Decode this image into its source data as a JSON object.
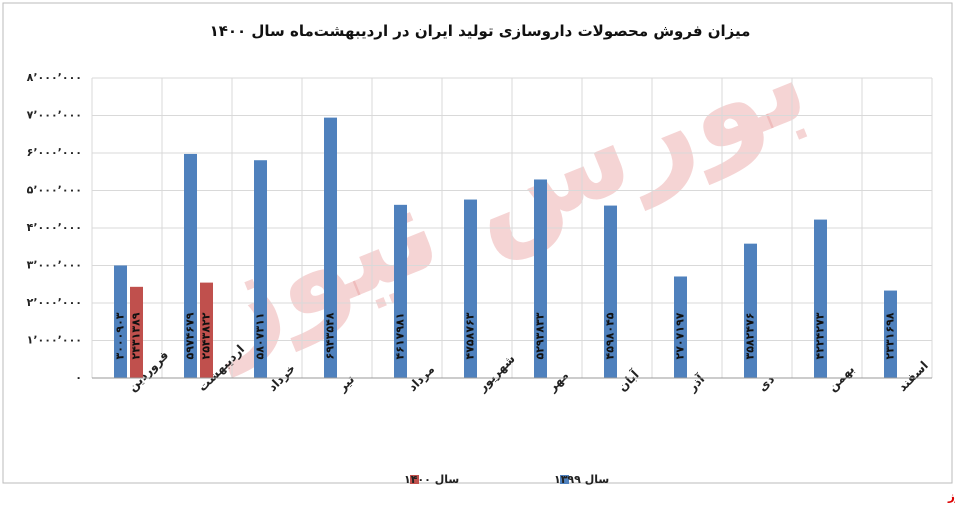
{
  "chart_data": {
    "type": "bar",
    "title": "میزان فروش محصولات داروسازی تولید ایران در اردیبهشت‌ماه سال ۱۴۰۰",
    "categories": [
      "فروردین",
      "اردیبهشت",
      "خرداد",
      "تیر",
      "مرداد",
      "شهریور",
      "مهر",
      "آبان",
      "آذر",
      "دی",
      "بهمن",
      "اسفند"
    ],
    "series": [
      {
        "name": "سال ۱۳۹۹",
        "color": "#4f81bd",
        "values": [
          3000903,
          5974679,
          5807311,
          6943548,
          4617981,
          4758763,
          5293833,
          4598045,
          2707197,
          3582476,
          4224273,
          2331698
        ],
        "value_labels": [
          "۳۰۰۰۹۰۳",
          "۵۹۷۴۶۷۹",
          "۵۸۰۷۳۱۱",
          "۶۹۴۳۵۴۸",
          "۴۶۱۷۹۸۱",
          "۴۷۵۸۷۶۳",
          "۵۲۹۳۸۳۳",
          "۴۵۹۸۰۴۵",
          "۲۷۰۷۱۹۷",
          "۳۵۸۲۴۷۶",
          "۴۲۲۴۲۷۳",
          "۲۳۳۱۶۹۸"
        ]
      },
      {
        "name": "سال ۱۴۰۰",
        "color": "#c0504d",
        "values": [
          2431389,
          2543822,
          null,
          null,
          null,
          null,
          null,
          null,
          null,
          null,
          null,
          null
        ],
        "value_labels": [
          "۲۴۳۱۳۸۹",
          "۲۵۴۳۸۲۲",
          null,
          null,
          null,
          null,
          null,
          null,
          null,
          null,
          null,
          null
        ]
      }
    ],
    "ylim": [
      0,
      8000000
    ],
    "yticks": [
      {
        "value": 0,
        "label": "۰"
      },
      {
        "value": 1000000,
        "label": "۱٬۰۰۰٬۰۰۰"
      },
      {
        "value": 2000000,
        "label": "۲٬۰۰۰٬۰۰۰"
      },
      {
        "value": 3000000,
        "label": "۳٬۰۰۰٬۰۰۰"
      },
      {
        "value": 4000000,
        "label": "۴٬۰۰۰٬۰۰۰"
      },
      {
        "value": 5000000,
        "label": "۵٬۰۰۰٬۰۰۰"
      },
      {
        "value": 6000000,
        "label": "۶٬۰۰۰٬۰۰۰"
      },
      {
        "value": 7000000,
        "label": "۷٬۰۰۰٬۰۰۰"
      },
      {
        "value": 8000000,
        "label": "۸٬۰۰۰٬۰۰۰"
      }
    ],
    "grid": true,
    "watermark": "بورس نیوز",
    "source": "بورس نیوز"
  }
}
